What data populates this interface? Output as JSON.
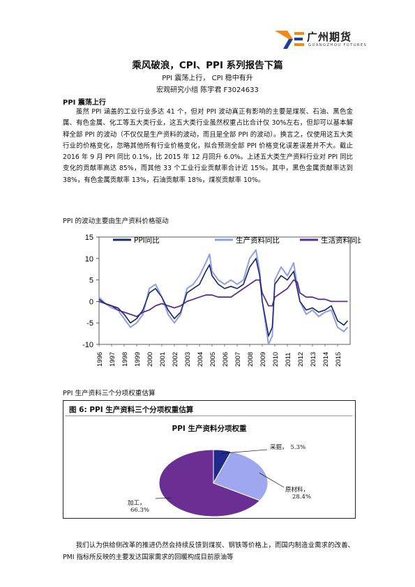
{
  "header": {
    "brand_cn": "广州期货",
    "brand_en": "GUANGZHOU FUTURES"
  },
  "title": "乘风破浪，CPI、PPI 系列报告下篇",
  "subtitle1": "PPI 震荡上行， CPI 稳中有升",
  "subtitle2": "宏观研究小组    陈宇君 F3024633",
  "section_head": "PPI 震荡上行",
  "paragraph": "虽然 PPI 涵盖的工业行业多达 41 个，但对 PPI 波动真正有影响的主要是煤炭、石油、黑色金属、有色金属、化工等五大类行业，这五大类行业虽然权重占比合计仅 30%左右，但却可以基本解释全部 PPI 的波动（不仅仅是生产资料的波动，而且是全部 PPI 的波动）。换言之，仅使用这五大类行业的价格变化，忽略其他所有行业价格变化，拟合预测全部 PPI 价格变化误差误差并不大。截止 2016 年 9 月 PPI 同比 0.1%，比 2015 年 12 月回升 6.0%。上述五大类生产资料行业对 PPI 同比变化的贡献率高达 85%，而其他 33 个工业行业贡献率合计近 15%。其中，黑色金属贡献率达到 38%，有色金属贡献率 13%，石油贡献率 18%，煤炭贡献率 10%。",
  "caption1": "PPI 的波动主要由生产资料价格驱动",
  "caption2": "PPI 生产资料三个分项权重估算",
  "footer_paragraph": "我们认为供给侧改革的推进仍然会持续反馈到煤炭、钢铁等价格上，而国内制造业需求的改善、PMI 指标所反映的主要发达国家需求的回暖构成目前原油等",
  "chart_data": [
    {
      "type": "line",
      "title": "",
      "x_tick_labels": [
        "1996",
        "1997",
        "1998",
        "1999",
        "2000",
        "2001",
        "2002",
        "2003",
        "2004",
        "2005",
        "2006",
        "2007",
        "2008",
        "2009",
        "2010",
        "2011",
        "2012",
        "2013",
        "2014",
        "2015"
      ],
      "y_tick_labels": [
        "15",
        "10",
        "5",
        "0",
        "-5",
        "-10"
      ],
      "ylim": [
        -10,
        15
      ],
      "grid": false,
      "legend_position": "top",
      "x_start": 1996,
      "series": [
        {
          "name": "PPI同比",
          "color": "#1a2a6c",
          "points": [
            [
              1996,
              0.5
            ],
            [
              1996.5,
              -0.5
            ],
            [
              1997,
              -1
            ],
            [
              1997.5,
              -1.5
            ],
            [
              1998,
              -3
            ],
            [
              1998.5,
              -5
            ],
            [
              1999,
              -4
            ],
            [
              1999.5,
              -2
            ],
            [
              2000,
              2
            ],
            [
              2000.5,
              3
            ],
            [
              2001,
              1
            ],
            [
              2001.5,
              -2
            ],
            [
              2002,
              -4
            ],
            [
              2002.5,
              -2.5
            ],
            [
              2003,
              2
            ],
            [
              2003.5,
              3
            ],
            [
              2004,
              4
            ],
            [
              2004.5,
              7
            ],
            [
              2004.8,
              8.5
            ],
            [
              2005,
              6
            ],
            [
              2005.5,
              4
            ],
            [
              2006,
              3
            ],
            [
              2006.5,
              3.5
            ],
            [
              2007,
              3
            ],
            [
              2007.5,
              4
            ],
            [
              2008,
              8
            ],
            [
              2008.5,
              10
            ],
            [
              2008.8,
              6
            ],
            [
              2009,
              0
            ],
            [
              2009.5,
              -8
            ],
            [
              2009.8,
              -6
            ],
            [
              2010,
              4
            ],
            [
              2010.5,
              6
            ],
            [
              2011,
              5
            ],
            [
              2011.5,
              7
            ],
            [
              2012,
              0
            ],
            [
              2012.5,
              -2
            ],
            [
              2013,
              -1.5
            ],
            [
              2013.5,
              -2.5
            ],
            [
              2014,
              -2
            ],
            [
              2014.5,
              -1
            ],
            [
              2015,
              -4.5
            ],
            [
              2015.5,
              -5.5
            ],
            [
              2015.8,
              -4.5
            ]
          ]
        },
        {
          "name": "生产资料同比",
          "color": "#8f9dea",
          "points": [
            [
              1996,
              1
            ],
            [
              1996.5,
              -0.5
            ],
            [
              1997,
              -1.5
            ],
            [
              1997.5,
              -2
            ],
            [
              1998,
              -4
            ],
            [
              1998.5,
              -6
            ],
            [
              1999,
              -5
            ],
            [
              1999.5,
              -3
            ],
            [
              2000,
              3
            ],
            [
              2000.5,
              4
            ],
            [
              2001,
              1
            ],
            [
              2001.5,
              -3
            ],
            [
              2002,
              -5
            ],
            [
              2002.5,
              -3
            ],
            [
              2003,
              3
            ],
            [
              2003.5,
              4
            ],
            [
              2004,
              6
            ],
            [
              2004.5,
              9
            ],
            [
              2004.8,
              11
            ],
            [
              2005,
              7
            ],
            [
              2005.5,
              5
            ],
            [
              2006,
              4
            ],
            [
              2006.5,
              5
            ],
            [
              2007,
              4
            ],
            [
              2007.5,
              5
            ],
            [
              2008,
              10
            ],
            [
              2008.5,
              12
            ],
            [
              2008.8,
              7
            ],
            [
              2009,
              0
            ],
            [
              2009.5,
              -10
            ],
            [
              2009.8,
              -8
            ],
            [
              2010,
              5
            ],
            [
              2010.5,
              8
            ],
            [
              2011,
              6
            ],
            [
              2011.5,
              9
            ],
            [
              2012,
              0
            ],
            [
              2012.5,
              -3
            ],
            [
              2013,
              -2
            ],
            [
              2013.5,
              -3.5
            ],
            [
              2014,
              -2.5
            ],
            [
              2014.5,
              -2
            ],
            [
              2015,
              -6
            ],
            [
              2015.5,
              -7
            ],
            [
              2015.8,
              -6
            ]
          ]
        },
        {
          "name": "生活资料同比",
          "color": "#5a2d91",
          "points": [
            [
              1996,
              0
            ],
            [
              1996.5,
              -0.5
            ],
            [
              1997,
              -1
            ],
            [
              1997.5,
              -2
            ],
            [
              1998,
              -2.5
            ],
            [
              1998.5,
              -3
            ],
            [
              1999,
              -3.5
            ],
            [
              1999.5,
              -2.5
            ],
            [
              2000,
              -2
            ],
            [
              2000.5,
              -1
            ],
            [
              2001,
              -0.5
            ],
            [
              2001.5,
              -1
            ],
            [
              2002,
              -1.5
            ],
            [
              2002.5,
              -1
            ],
            [
              2003,
              0
            ],
            [
              2003.5,
              0.5
            ],
            [
              2004,
              1
            ],
            [
              2004.5,
              1.5
            ],
            [
              2005,
              1.5
            ],
            [
              2005.5,
              1
            ],
            [
              2006,
              1
            ],
            [
              2006.5,
              1
            ],
            [
              2007,
              2
            ],
            [
              2007.5,
              3
            ],
            [
              2008,
              4
            ],
            [
              2008.5,
              5
            ],
            [
              2008.8,
              5
            ],
            [
              2009,
              2
            ],
            [
              2009.5,
              -1
            ],
            [
              2009.8,
              -1
            ],
            [
              2010,
              1
            ],
            [
              2010.5,
              2
            ],
            [
              2011,
              3
            ],
            [
              2011.5,
              5
            ],
            [
              2011.8,
              4.5
            ],
            [
              2012,
              2
            ],
            [
              2012.5,
              1
            ],
            [
              2013,
              1
            ],
            [
              2013.5,
              0.5
            ],
            [
              2014,
              0.5
            ],
            [
              2014.5,
              0
            ],
            [
              2015,
              0
            ],
            [
              2015.5,
              0
            ],
            [
              2015.8,
              0
            ]
          ]
        }
      ]
    },
    {
      "type": "pie",
      "figure_label": "图 6:  PPI 生产资料三个分项权重估算",
      "title": "PPI 生产资料分项权重",
      "slices": [
        {
          "label": "采掘，",
          "value": 5.3,
          "value_text": "5.3%",
          "color": "#1f2a8a"
        },
        {
          "label": "原材料，",
          "value": 28.4,
          "value_text": "28.4%",
          "color": "#9fa8ef"
        },
        {
          "label": "加工，",
          "value": 66.3,
          "value_text": "66.3%",
          "color": "#6b2f93"
        }
      ]
    }
  ]
}
